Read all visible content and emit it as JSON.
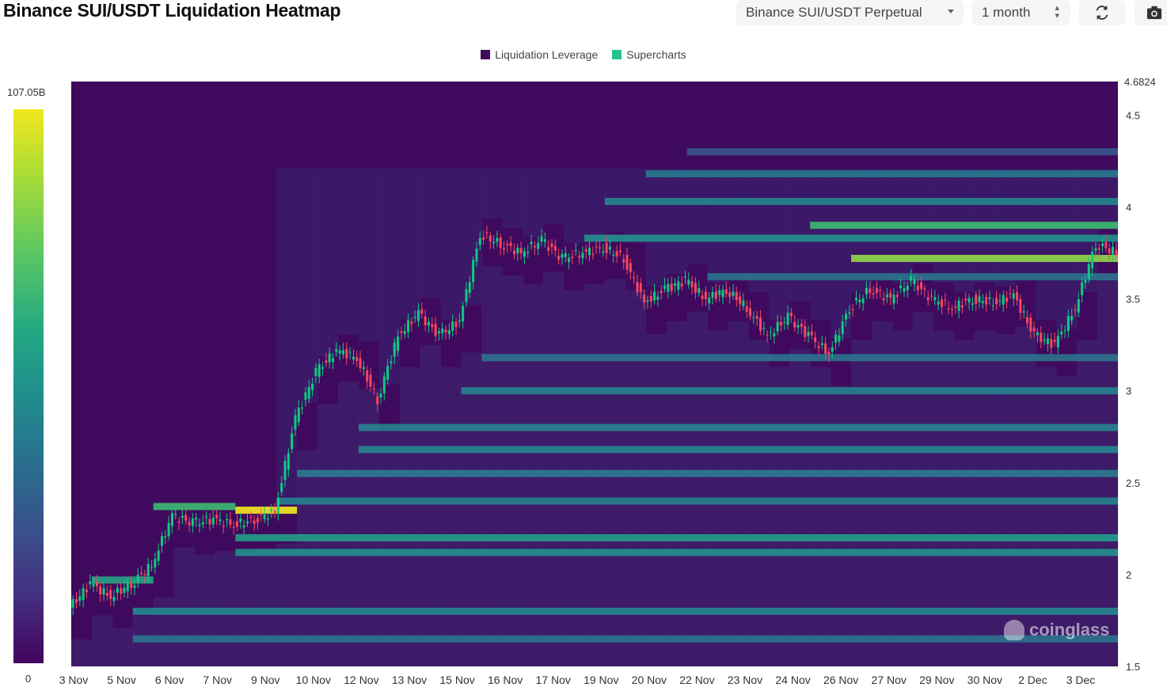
{
  "header": {
    "title": "Binance SUI/USDT Liquidation Heatmap",
    "exchange_select": "Binance SUI/USDT Perpetual",
    "range_select": "1 month",
    "refresh_icon": "refresh-icon",
    "camera_icon": "camera-icon"
  },
  "scale": {
    "max_label": "107.05B",
    "min_label": "0"
  },
  "watermark": "coinglass",
  "colors": {
    "up": "#0ecb81",
    "down": "#f6465d",
    "background": "#3f0a5e",
    "liquidation_leverage": "#3d0c59",
    "supercharts": "#23c48b"
  },
  "chart_data": {
    "type": "heatmap",
    "title": "Binance SUI/USDT Liquidation Heatmap",
    "legend": [
      "Liquidation Leverage",
      "Supercharts"
    ],
    "legend_placement": "top-center",
    "x_ticks": [
      "3 Nov",
      "5 Nov",
      "6 Nov",
      "7 Nov",
      "9 Nov",
      "10 Nov",
      "12 Nov",
      "13 Nov",
      "15 Nov",
      "16 Nov",
      "17 Nov",
      "19 Nov",
      "20 Nov",
      "22 Nov",
      "23 Nov",
      "24 Nov",
      "26 Nov",
      "27 Nov",
      "29 Nov",
      "30 Nov",
      "2 Dec",
      "3 Dec"
    ],
    "y_ticks": [
      4.5,
      4,
      3.5,
      3,
      2.5,
      2,
      1.5
    ],
    "y_max_label": "4.6824",
    "ylim": [
      1.5,
      4.6824
    ],
    "color_scale": [
      0,
      107.05
    ],
    "color_scale_unit": "B",
    "price_path": [
      [
        0,
        1.82
      ],
      [
        1,
        1.95
      ],
      [
        2,
        1.88
      ],
      [
        3,
        1.95
      ],
      [
        4,
        2.05
      ],
      [
        5,
        2.32
      ],
      [
        6,
        2.28
      ],
      [
        7,
        2.3
      ],
      [
        8,
        2.27
      ],
      [
        9,
        2.3
      ],
      [
        10,
        2.34
      ],
      [
        11,
        2.85
      ],
      [
        12,
        3.1
      ],
      [
        13,
        3.22
      ],
      [
        14,
        3.18
      ],
      [
        15,
        2.95
      ],
      [
        16,
        3.3
      ],
      [
        17,
        3.42
      ],
      [
        18,
        3.3
      ],
      [
        19,
        3.38
      ],
      [
        20,
        3.85
      ],
      [
        21,
        3.8
      ],
      [
        22,
        3.75
      ],
      [
        23,
        3.82
      ],
      [
        24,
        3.72
      ],
      [
        25,
        3.75
      ],
      [
        26,
        3.78
      ],
      [
        27,
        3.72
      ],
      [
        28,
        3.48
      ],
      [
        29,
        3.55
      ],
      [
        30,
        3.6
      ],
      [
        31,
        3.5
      ],
      [
        32,
        3.55
      ],
      [
        33,
        3.45
      ],
      [
        34,
        3.3
      ],
      [
        35,
        3.4
      ],
      [
        36,
        3.3
      ],
      [
        37,
        3.2
      ],
      [
        38,
        3.45
      ],
      [
        39,
        3.55
      ],
      [
        40,
        3.5
      ],
      [
        41,
        3.6
      ],
      [
        42,
        3.5
      ],
      [
        43,
        3.45
      ],
      [
        44,
        3.5
      ],
      [
        45,
        3.48
      ],
      [
        46,
        3.52
      ],
      [
        47,
        3.3
      ],
      [
        48,
        3.25
      ],
      [
        49,
        3.45
      ],
      [
        50,
        3.8
      ],
      [
        51,
        3.75
      ]
    ],
    "heat_bands": [
      {
        "price": 2.35,
        "intensity": 1.0,
        "from": 8,
        "to": 11
      },
      {
        "price": 2.37,
        "intensity": 0.75,
        "from": 4,
        "to": 8
      },
      {
        "price": 1.97,
        "intensity": 0.65,
        "from": 1,
        "to": 4
      },
      {
        "price": 3.72,
        "intensity": 0.88,
        "from": 38,
        "to": 51
      },
      {
        "price": 3.9,
        "intensity": 0.75,
        "from": 36,
        "to": 51
      },
      {
        "price": 3.83,
        "intensity": 0.55,
        "from": 25,
        "to": 51
      },
      {
        "price": 2.2,
        "intensity": 0.62,
        "from": 8,
        "to": 51
      },
      {
        "price": 2.12,
        "intensity": 0.55,
        "from": 8,
        "to": 51
      },
      {
        "price": 1.8,
        "intensity": 0.5,
        "from": 3,
        "to": 51
      },
      {
        "price": 4.03,
        "intensity": 0.5,
        "from": 26,
        "to": 51
      },
      {
        "price": 4.18,
        "intensity": 0.42,
        "from": 28,
        "to": 51
      },
      {
        "price": 2.68,
        "intensity": 0.48,
        "from": 14,
        "to": 51
      },
      {
        "price": 2.8,
        "intensity": 0.45,
        "from": 14,
        "to": 51
      },
      {
        "price": 2.4,
        "intensity": 0.45,
        "from": 10,
        "to": 51
      },
      {
        "price": 2.55,
        "intensity": 0.42,
        "from": 11,
        "to": 51
      },
      {
        "price": 3.0,
        "intensity": 0.45,
        "from": 19,
        "to": 51
      },
      {
        "price": 3.18,
        "intensity": 0.4,
        "from": 20,
        "to": 51
      },
      {
        "price": 1.65,
        "intensity": 0.4,
        "from": 3,
        "to": 51
      },
      {
        "price": 3.62,
        "intensity": 0.4,
        "from": 31,
        "to": 51
      },
      {
        "price": 4.3,
        "intensity": 0.3,
        "from": 30,
        "to": 51
      }
    ]
  }
}
